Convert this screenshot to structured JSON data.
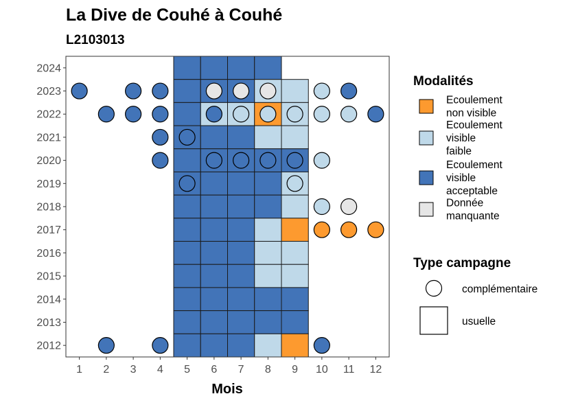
{
  "chart_data": {
    "type": "heatmap",
    "title": "La Dive de Couhé à Couhé",
    "subtitle": "L2103013",
    "xlabel": "Mois",
    "ylabel": "",
    "x_ticks": [
      "1",
      "2",
      "3",
      "4",
      "5",
      "6",
      "7",
      "8",
      "9",
      "10",
      "11",
      "12"
    ],
    "y_ticks": [
      "2012",
      "2013",
      "2014",
      "2015",
      "2016",
      "2017",
      "2018",
      "2019",
      "2020",
      "2021",
      "2022",
      "2023",
      "2024"
    ],
    "xlim": [
      0.5,
      12.5
    ],
    "ylim": [
      2011.5,
      2024.5
    ],
    "colors": {
      "non_visible": "#fd9a2f",
      "faible": "#bfd9e9",
      "acceptable": "#4274b8",
      "manquante": "#e6e6e6"
    },
    "legend_modalites": {
      "title": "Modalités",
      "items": [
        {
          "key": "non_visible",
          "lines": [
            "Ecoulement",
            "non visible"
          ]
        },
        {
          "key": "faible",
          "lines": [
            "Ecoulement",
            "visible",
            "faible"
          ]
        },
        {
          "key": "acceptable",
          "lines": [
            "Ecoulement",
            "visible",
            "acceptable"
          ]
        },
        {
          "key": "manquante",
          "lines": [
            "Donnée",
            "manquante"
          ]
        }
      ]
    },
    "legend_campagne": {
      "title": "Type campagne",
      "items": [
        {
          "shape": "circle",
          "label": "complémentaire"
        },
        {
          "shape": "square",
          "label": "usuelle"
        }
      ]
    },
    "usuelle": [
      {
        "year": 2024,
        "cells": {
          "5": "acceptable",
          "6": "acceptable",
          "7": "acceptable",
          "8": "acceptable"
        }
      },
      {
        "year": 2023,
        "cells": {
          "5": "acceptable",
          "6": "acceptable",
          "7": "acceptable",
          "8": "faible",
          "9": "faible"
        }
      },
      {
        "year": 2022,
        "cells": {
          "5": "acceptable",
          "6": "faible",
          "7": "faible",
          "8": "non_visible",
          "9": "faible"
        }
      },
      {
        "year": 2021,
        "cells": {
          "5": "acceptable",
          "6": "acceptable",
          "7": "acceptable",
          "8": "faible",
          "9": "faible"
        }
      },
      {
        "year": 2020,
        "cells": {
          "5": "acceptable",
          "6": "acceptable",
          "7": "acceptable",
          "8": "acceptable",
          "9": "acceptable"
        }
      },
      {
        "year": 2019,
        "cells": {
          "5": "acceptable",
          "6": "acceptable",
          "7": "acceptable",
          "8": "acceptable",
          "9": "faible"
        }
      },
      {
        "year": 2018,
        "cells": {
          "5": "acceptable",
          "6": "acceptable",
          "7": "acceptable",
          "8": "acceptable",
          "9": "faible"
        }
      },
      {
        "year": 2017,
        "cells": {
          "5": "acceptable",
          "6": "acceptable",
          "7": "acceptable",
          "8": "faible",
          "9": "non_visible"
        }
      },
      {
        "year": 2016,
        "cells": {
          "5": "acceptable",
          "6": "acceptable",
          "7": "acceptable",
          "8": "faible",
          "9": "faible"
        }
      },
      {
        "year": 2015,
        "cells": {
          "5": "acceptable",
          "6": "acceptable",
          "7": "acceptable",
          "8": "faible",
          "9": "faible"
        }
      },
      {
        "year": 2014,
        "cells": {
          "5": "acceptable",
          "6": "acceptable",
          "7": "acceptable",
          "8": "acceptable",
          "9": "acceptable"
        }
      },
      {
        "year": 2013,
        "cells": {
          "5": "acceptable",
          "6": "acceptable",
          "7": "acceptable",
          "8": "acceptable",
          "9": "acceptable"
        }
      },
      {
        "year": 2012,
        "cells": {
          "5": "acceptable",
          "6": "acceptable",
          "7": "acceptable",
          "8": "faible",
          "9": "non_visible"
        }
      }
    ],
    "complementaire": [
      {
        "year": 2023,
        "month": 1,
        "value": "acceptable"
      },
      {
        "year": 2023,
        "month": 3,
        "value": "acceptable"
      },
      {
        "year": 2023,
        "month": 4,
        "value": "acceptable"
      },
      {
        "year": 2023,
        "month": 6,
        "value": "manquante"
      },
      {
        "year": 2023,
        "month": 7,
        "value": "manquante"
      },
      {
        "year": 2023,
        "month": 8,
        "value": "manquante"
      },
      {
        "year": 2023,
        "month": 10,
        "value": "faible"
      },
      {
        "year": 2023,
        "month": 11,
        "value": "acceptable"
      },
      {
        "year": 2022,
        "month": 2,
        "value": "acceptable"
      },
      {
        "year": 2022,
        "month": 3,
        "value": "acceptable"
      },
      {
        "year": 2022,
        "month": 4,
        "value": "acceptable"
      },
      {
        "year": 2022,
        "month": 6,
        "value": "acceptable"
      },
      {
        "year": 2022,
        "month": 7,
        "value": "faible"
      },
      {
        "year": 2022,
        "month": 8,
        "value": "faible"
      },
      {
        "year": 2022,
        "month": 9,
        "value": "faible"
      },
      {
        "year": 2022,
        "month": 10,
        "value": "faible"
      },
      {
        "year": 2022,
        "month": 11,
        "value": "faible"
      },
      {
        "year": 2022,
        "month": 12,
        "value": "acceptable"
      },
      {
        "year": 2021,
        "month": 4,
        "value": "acceptable"
      },
      {
        "year": 2021,
        "month": 5,
        "value": "acceptable"
      },
      {
        "year": 2020,
        "month": 4,
        "value": "acceptable"
      },
      {
        "year": 2020,
        "month": 6,
        "value": "acceptable"
      },
      {
        "year": 2020,
        "month": 7,
        "value": "acceptable"
      },
      {
        "year": 2020,
        "month": 8,
        "value": "acceptable"
      },
      {
        "year": 2020,
        "month": 9,
        "value": "acceptable"
      },
      {
        "year": 2020,
        "month": 10,
        "value": "faible"
      },
      {
        "year": 2019,
        "month": 5,
        "value": "acceptable"
      },
      {
        "year": 2019,
        "month": 9,
        "value": "faible"
      },
      {
        "year": 2018,
        "month": 10,
        "value": "faible"
      },
      {
        "year": 2018,
        "month": 11,
        "value": "manquante"
      },
      {
        "year": 2017,
        "month": 10,
        "value": "non_visible"
      },
      {
        "year": 2017,
        "month": 11,
        "value": "non_visible"
      },
      {
        "year": 2017,
        "month": 12,
        "value": "non_visible"
      },
      {
        "year": 2012,
        "month": 2,
        "value": "acceptable"
      },
      {
        "year": 2012,
        "month": 4,
        "value": "acceptable"
      },
      {
        "year": 2012,
        "month": 10,
        "value": "acceptable"
      }
    ]
  }
}
